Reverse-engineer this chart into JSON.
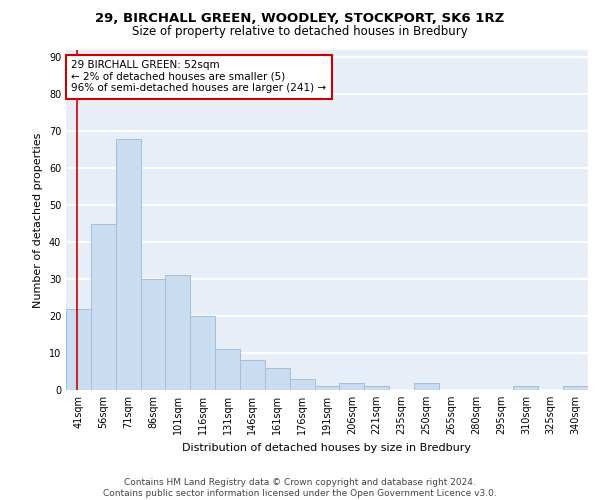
{
  "title1": "29, BIRCHALL GREEN, WOODLEY, STOCKPORT, SK6 1RZ",
  "title2": "Size of property relative to detached houses in Bredbury",
  "xlabel": "Distribution of detached houses by size in Bredbury",
  "ylabel": "Number of detached properties",
  "categories": [
    "41sqm",
    "56sqm",
    "71sqm",
    "86sqm",
    "101sqm",
    "116sqm",
    "131sqm",
    "146sqm",
    "161sqm",
    "176sqm",
    "191sqm",
    "206sqm",
    "221sqm",
    "235sqm",
    "250sqm",
    "265sqm",
    "280sqm",
    "295sqm",
    "310sqm",
    "325sqm",
    "340sqm"
  ],
  "values": [
    22,
    45,
    68,
    30,
    31,
    20,
    11,
    8,
    6,
    3,
    1,
    2,
    1,
    0,
    2,
    0,
    0,
    0,
    1,
    0,
    1
  ],
  "bar_color": "#c9dcf0",
  "bar_edge_color": "#a0bfdc",
  "marker_line_color": "#cc0000",
  "ylim": [
    0,
    92
  ],
  "yticks": [
    0,
    10,
    20,
    30,
    40,
    50,
    60,
    70,
    80,
    90
  ],
  "annotation_line1": "29 BIRCHALL GREEN: 52sqm",
  "annotation_line2": "← 2% of detached houses are smaller (5)",
  "annotation_line3": "96% of semi-detached houses are larger (241) →",
  "annotation_box_color": "#ffffff",
  "annotation_box_edge": "#cc0000",
  "footer1": "Contains HM Land Registry data © Crown copyright and database right 2024.",
  "footer2": "Contains public sector information licensed under the Open Government Licence v3.0.",
  "background_color": "#e8eef8",
  "grid_color": "#ffffff",
  "title1_fontsize": 9.5,
  "title2_fontsize": 8.5,
  "axis_label_fontsize": 8,
  "tick_fontsize": 7,
  "annotation_fontsize": 7.5,
  "footer_fontsize": 6.5
}
